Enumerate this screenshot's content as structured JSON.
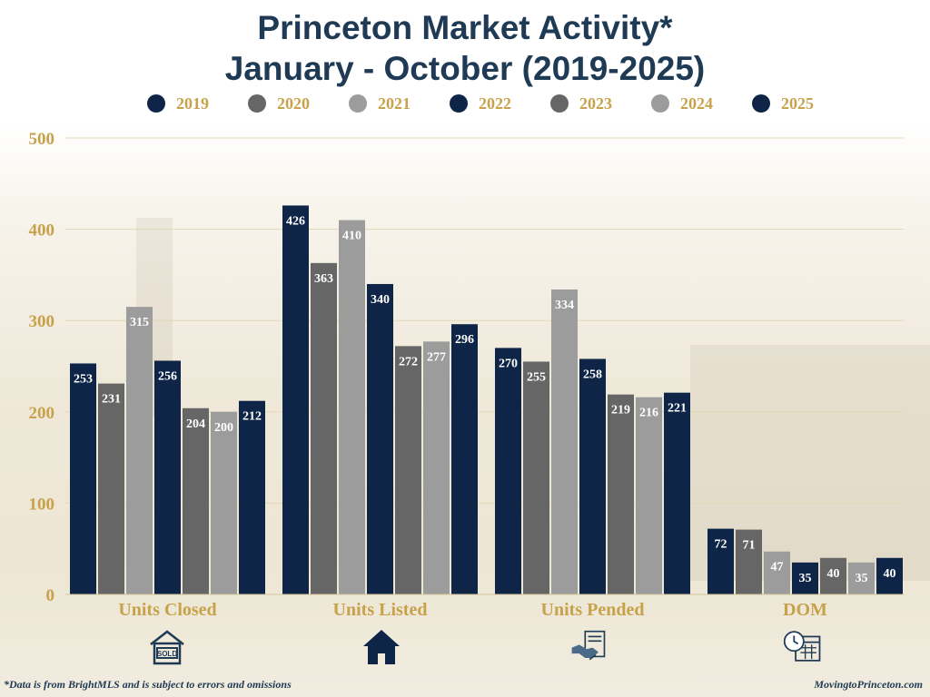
{
  "title_line1": "Princeton Market Activity*",
  "title_line2": "January - October (2019-2025)",
  "footnote": "*Data is from BrightMLS and is subject to errors and omissions",
  "site": "MovingtoPrinceton.com",
  "colors": {
    "2019": "#0e2547",
    "2020": "#666666",
    "2021": "#9c9c9c",
    "2022": "#0e2547",
    "2023": "#666666",
    "2024": "#9c9c9c",
    "2025": "#0e2547",
    "title": "#1f3a55",
    "gold": "#c8a24a"
  },
  "icons": [
    "sold-sign-icon",
    "house-icon",
    "handshake-contract-icon",
    "clock-calendar-icon"
  ],
  "chart_data": {
    "type": "bar",
    "title": "Princeton Market Activity* January - October (2019-2025)",
    "categories": [
      "Units Closed",
      "Units Listed",
      "Units Pended",
      "DOM"
    ],
    "series": [
      {
        "name": "2019",
        "values": [
          253,
          426,
          270,
          72
        ]
      },
      {
        "name": "2020",
        "values": [
          231,
          363,
          255,
          71
        ]
      },
      {
        "name": "2021",
        "values": [
          315,
          410,
          334,
          47
        ]
      },
      {
        "name": "2022",
        "values": [
          256,
          340,
          258,
          35
        ]
      },
      {
        "name": "2023",
        "values": [
          204,
          272,
          219,
          40
        ]
      },
      {
        "name": "2024",
        "values": [
          200,
          277,
          216,
          35
        ]
      },
      {
        "name": "2025",
        "values": [
          212,
          296,
          221,
          40
        ]
      }
    ],
    "yticks": [
      0,
      100,
      200,
      300,
      400,
      500
    ],
    "ylim": [
      0,
      500
    ],
    "xlabel": "",
    "ylabel": "",
    "legend": "top",
    "grid": true
  }
}
